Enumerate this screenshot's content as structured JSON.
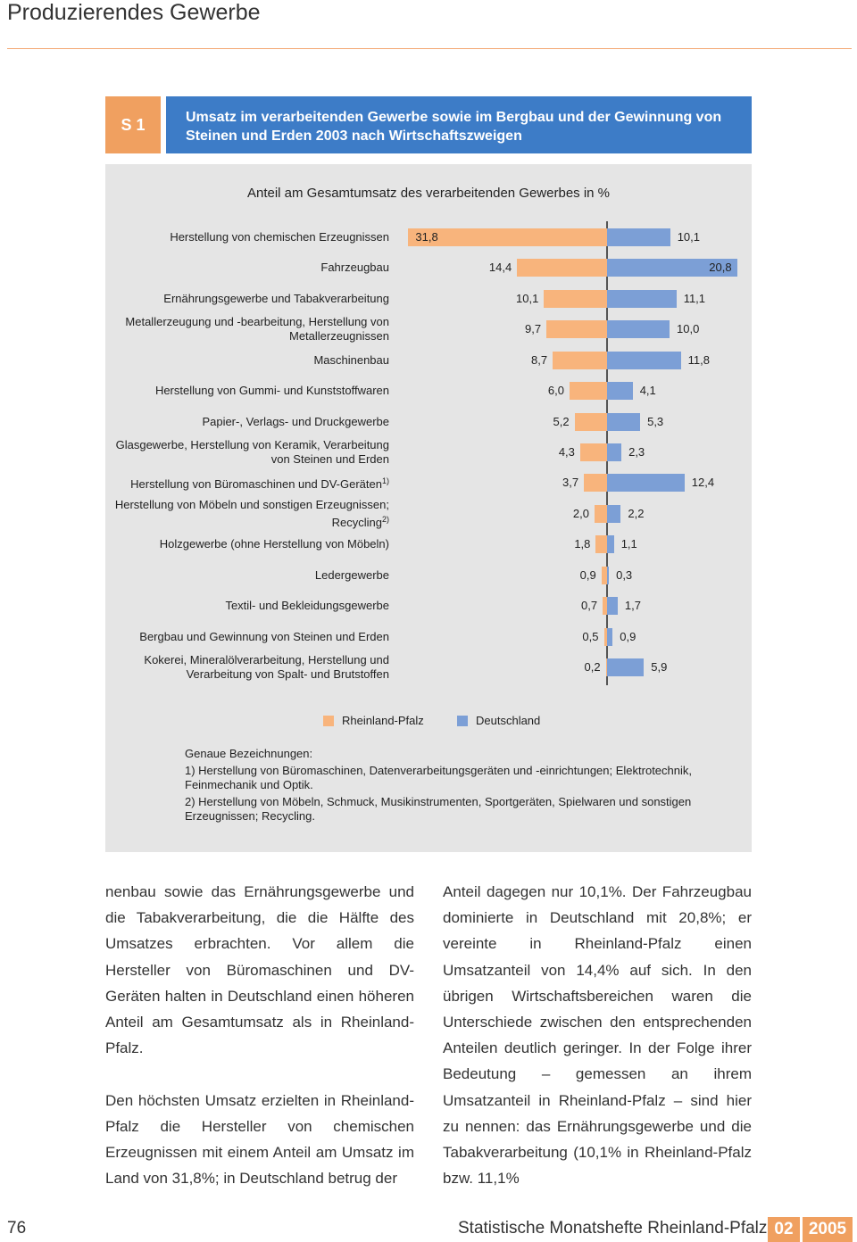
{
  "header": {
    "title": "Produzierendes Gewerbe"
  },
  "chart_data": {
    "type": "bar",
    "label": "S 1",
    "title": "Umsatz im verarbeitenden Gewerbe sowie im Bergbau und der Gewinnung von Steinen und Erden 2003 nach Wirtschaftszweigen",
    "subtitle": "Anteil am Gesamtumsatz des verarbeitenden Gewerbes in %",
    "categories": [
      "Herstellung von chemischen Erzeugnissen",
      "Fahrzeugbau",
      "Ernährungsgewerbe und Tabakverarbeitung",
      "Metallerzeugung und -bearbeitung, Herstellung von Metallerzeugnissen",
      "Maschinenbau",
      "Herstellung von Gummi- und Kunststoffwaren",
      "Papier-, Verlags- und Druckgewerbe",
      "Glasgewerbe, Herstellung von Keramik, Verarbeitung von Steinen und Erden",
      "Herstellung von Büromaschinen und DV-Geräten",
      "Herstellung von Möbeln und sonstigen Erzeugnissen; Recycling",
      "Holzgewerbe (ohne Herstellung von Möbeln)",
      "Ledergewerbe",
      "Textil- und Bekleidungsgewerbe",
      "Bergbau und Gewinnung von Steinen und Erden",
      "Kokerei, Mineralölverarbeitung, Herstellung und Verarbeitung von Spalt- und Brutstoffen"
    ],
    "category_marks": [
      null,
      null,
      null,
      null,
      null,
      null,
      null,
      null,
      "1)",
      "2)",
      null,
      null,
      null,
      null,
      null
    ],
    "series": [
      {
        "name": "Rheinland-Pfalz",
        "color": "#f8b47c",
        "values": [
          31.8,
          14.4,
          10.1,
          9.7,
          8.7,
          6.0,
          5.2,
          4.3,
          3.7,
          2.0,
          1.8,
          0.9,
          0.7,
          0.5,
          0.2
        ],
        "value_labels": [
          "31,8",
          "14,4",
          "10,1",
          "9,7",
          "8,7",
          "6,0",
          "5,2",
          "4,3",
          "3,7",
          "2,0",
          "1,8",
          "0,9",
          "0,7",
          "0,5",
          "0,2"
        ]
      },
      {
        "name": "Deutschland",
        "color": "#7c9fd6",
        "values": [
          10.1,
          20.8,
          11.1,
          10.0,
          11.8,
          4.1,
          5.3,
          2.3,
          12.4,
          2.2,
          1.1,
          0.3,
          1.7,
          0.9,
          5.9
        ],
        "value_labels": [
          "10,1",
          "20,8",
          "11,1",
          "10,0",
          "11,8",
          "4,1",
          "5,3",
          "2,3",
          "12,4",
          "2,2",
          "1,1",
          "0,3",
          "1,7",
          "0,9",
          "5,9"
        ]
      }
    ],
    "notes": {
      "title": "Genaue Bezeichnungen:",
      "items": [
        "1) Herstellung von Büromaschinen, Datenverarbeitungsgeräten und -einrichtungen; Elektrotechnik, Feinmechanik und Optik.",
        "2) Herstellung von Möbeln, Schmuck, Musikinstrumenten, Sportgeräten, Spielwaren und sonstigen Erzeugnissen; Recycling."
      ]
    }
  },
  "body": {
    "columns": [
      [
        "nenbau sowie das Ernährungsgewerbe und die Tabakverarbeitung, die die Hälfte des Umsatzes erbrachten. Vor allem die Hersteller von Büromaschinen und DV-Geräten halten in Deutschland einen höheren Anteil am Gesamtumsatz als in Rheinland-Pfalz.",
        "Den höchsten Umsatz erzielten in Rheinland-Pfalz die Hersteller von chemischen Erzeugnissen mit einem Anteil am Umsatz im Land von 31,8%; in Deutschland betrug der"
      ],
      [
        "Anteil dagegen nur 10,1%. Der Fahrzeugbau dominierte in Deutschland mit 20,8%; er vereinte in Rheinland-Pfalz einen Umsatzanteil von 14,4% auf sich. In den übrigen Wirtschaftsbereichen waren die Unterschiede zwischen den entsprechenden Anteilen deutlich geringer. In der Folge ihrer Bedeutung – gemessen an ihrem Umsatzanteil in Rheinland-Pfalz – sind hier zu nennen: das Ernährungsgewerbe und die Tabakverarbeitung (10,1% in Rheinland-Pfalz bzw. 11,1%"
      ]
    ]
  },
  "footer": {
    "page": "76",
    "publication": "Statistische Monatshefte Rheinland-Pfalz",
    "issue": "02",
    "year": "2005"
  }
}
